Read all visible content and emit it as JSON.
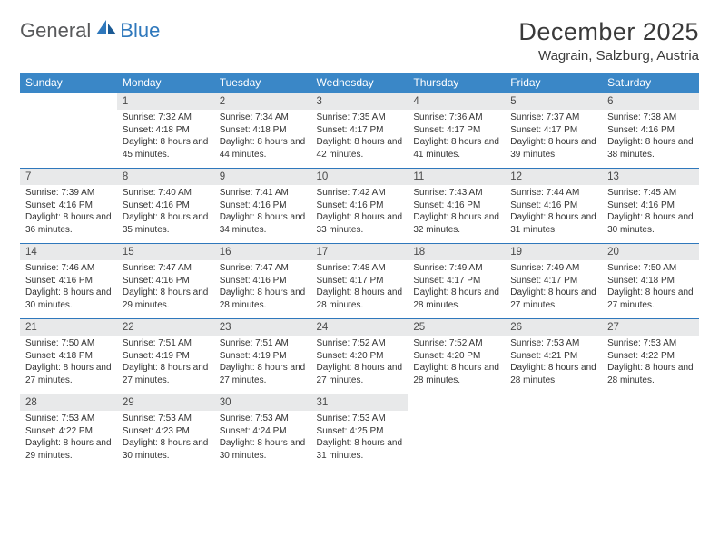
{
  "logo": {
    "general": "General",
    "blue": "Blue"
  },
  "title": "December 2025",
  "location": "Wagrain, Salzburg, Austria",
  "colors": {
    "header_bg": "#3a87c7",
    "header_text": "#ffffff",
    "border": "#2f78bc",
    "daynum_bg": "#e8e9ea",
    "text": "#333333",
    "logo_gray": "#58595b",
    "logo_blue": "#2f78bc"
  },
  "weekdays": [
    "Sunday",
    "Monday",
    "Tuesday",
    "Wednesday",
    "Thursday",
    "Friday",
    "Saturday"
  ],
  "weeks": [
    [
      null,
      {
        "n": "1",
        "sunrise": "7:32 AM",
        "sunset": "4:18 PM",
        "dl": "8 hours and 45 minutes."
      },
      {
        "n": "2",
        "sunrise": "7:34 AM",
        "sunset": "4:18 PM",
        "dl": "8 hours and 44 minutes."
      },
      {
        "n": "3",
        "sunrise": "7:35 AM",
        "sunset": "4:17 PM",
        "dl": "8 hours and 42 minutes."
      },
      {
        "n": "4",
        "sunrise": "7:36 AM",
        "sunset": "4:17 PM",
        "dl": "8 hours and 41 minutes."
      },
      {
        "n": "5",
        "sunrise": "7:37 AM",
        "sunset": "4:17 PM",
        "dl": "8 hours and 39 minutes."
      },
      {
        "n": "6",
        "sunrise": "7:38 AM",
        "sunset": "4:16 PM",
        "dl": "8 hours and 38 minutes."
      }
    ],
    [
      {
        "n": "7",
        "sunrise": "7:39 AM",
        "sunset": "4:16 PM",
        "dl": "8 hours and 36 minutes."
      },
      {
        "n": "8",
        "sunrise": "7:40 AM",
        "sunset": "4:16 PM",
        "dl": "8 hours and 35 minutes."
      },
      {
        "n": "9",
        "sunrise": "7:41 AM",
        "sunset": "4:16 PM",
        "dl": "8 hours and 34 minutes."
      },
      {
        "n": "10",
        "sunrise": "7:42 AM",
        "sunset": "4:16 PM",
        "dl": "8 hours and 33 minutes."
      },
      {
        "n": "11",
        "sunrise": "7:43 AM",
        "sunset": "4:16 PM",
        "dl": "8 hours and 32 minutes."
      },
      {
        "n": "12",
        "sunrise": "7:44 AM",
        "sunset": "4:16 PM",
        "dl": "8 hours and 31 minutes."
      },
      {
        "n": "13",
        "sunrise": "7:45 AM",
        "sunset": "4:16 PM",
        "dl": "8 hours and 30 minutes."
      }
    ],
    [
      {
        "n": "14",
        "sunrise": "7:46 AM",
        "sunset": "4:16 PM",
        "dl": "8 hours and 30 minutes."
      },
      {
        "n": "15",
        "sunrise": "7:47 AM",
        "sunset": "4:16 PM",
        "dl": "8 hours and 29 minutes."
      },
      {
        "n": "16",
        "sunrise": "7:47 AM",
        "sunset": "4:16 PM",
        "dl": "8 hours and 28 minutes."
      },
      {
        "n": "17",
        "sunrise": "7:48 AM",
        "sunset": "4:17 PM",
        "dl": "8 hours and 28 minutes."
      },
      {
        "n": "18",
        "sunrise": "7:49 AM",
        "sunset": "4:17 PM",
        "dl": "8 hours and 28 minutes."
      },
      {
        "n": "19",
        "sunrise": "7:49 AM",
        "sunset": "4:17 PM",
        "dl": "8 hours and 27 minutes."
      },
      {
        "n": "20",
        "sunrise": "7:50 AM",
        "sunset": "4:18 PM",
        "dl": "8 hours and 27 minutes."
      }
    ],
    [
      {
        "n": "21",
        "sunrise": "7:50 AM",
        "sunset": "4:18 PM",
        "dl": "8 hours and 27 minutes."
      },
      {
        "n": "22",
        "sunrise": "7:51 AM",
        "sunset": "4:19 PM",
        "dl": "8 hours and 27 minutes."
      },
      {
        "n": "23",
        "sunrise": "7:51 AM",
        "sunset": "4:19 PM",
        "dl": "8 hours and 27 minutes."
      },
      {
        "n": "24",
        "sunrise": "7:52 AM",
        "sunset": "4:20 PM",
        "dl": "8 hours and 27 minutes."
      },
      {
        "n": "25",
        "sunrise": "7:52 AM",
        "sunset": "4:20 PM",
        "dl": "8 hours and 28 minutes."
      },
      {
        "n": "26",
        "sunrise": "7:53 AM",
        "sunset": "4:21 PM",
        "dl": "8 hours and 28 minutes."
      },
      {
        "n": "27",
        "sunrise": "7:53 AM",
        "sunset": "4:22 PM",
        "dl": "8 hours and 28 minutes."
      }
    ],
    [
      {
        "n": "28",
        "sunrise": "7:53 AM",
        "sunset": "4:22 PM",
        "dl": "8 hours and 29 minutes."
      },
      {
        "n": "29",
        "sunrise": "7:53 AM",
        "sunset": "4:23 PM",
        "dl": "8 hours and 30 minutes."
      },
      {
        "n": "30",
        "sunrise": "7:53 AM",
        "sunset": "4:24 PM",
        "dl": "8 hours and 30 minutes."
      },
      {
        "n": "31",
        "sunrise": "7:53 AM",
        "sunset": "4:25 PM",
        "dl": "8 hours and 31 minutes."
      },
      null,
      null,
      null
    ]
  ],
  "labels": {
    "sunrise": "Sunrise:",
    "sunset": "Sunset:",
    "daylight": "Daylight:"
  }
}
